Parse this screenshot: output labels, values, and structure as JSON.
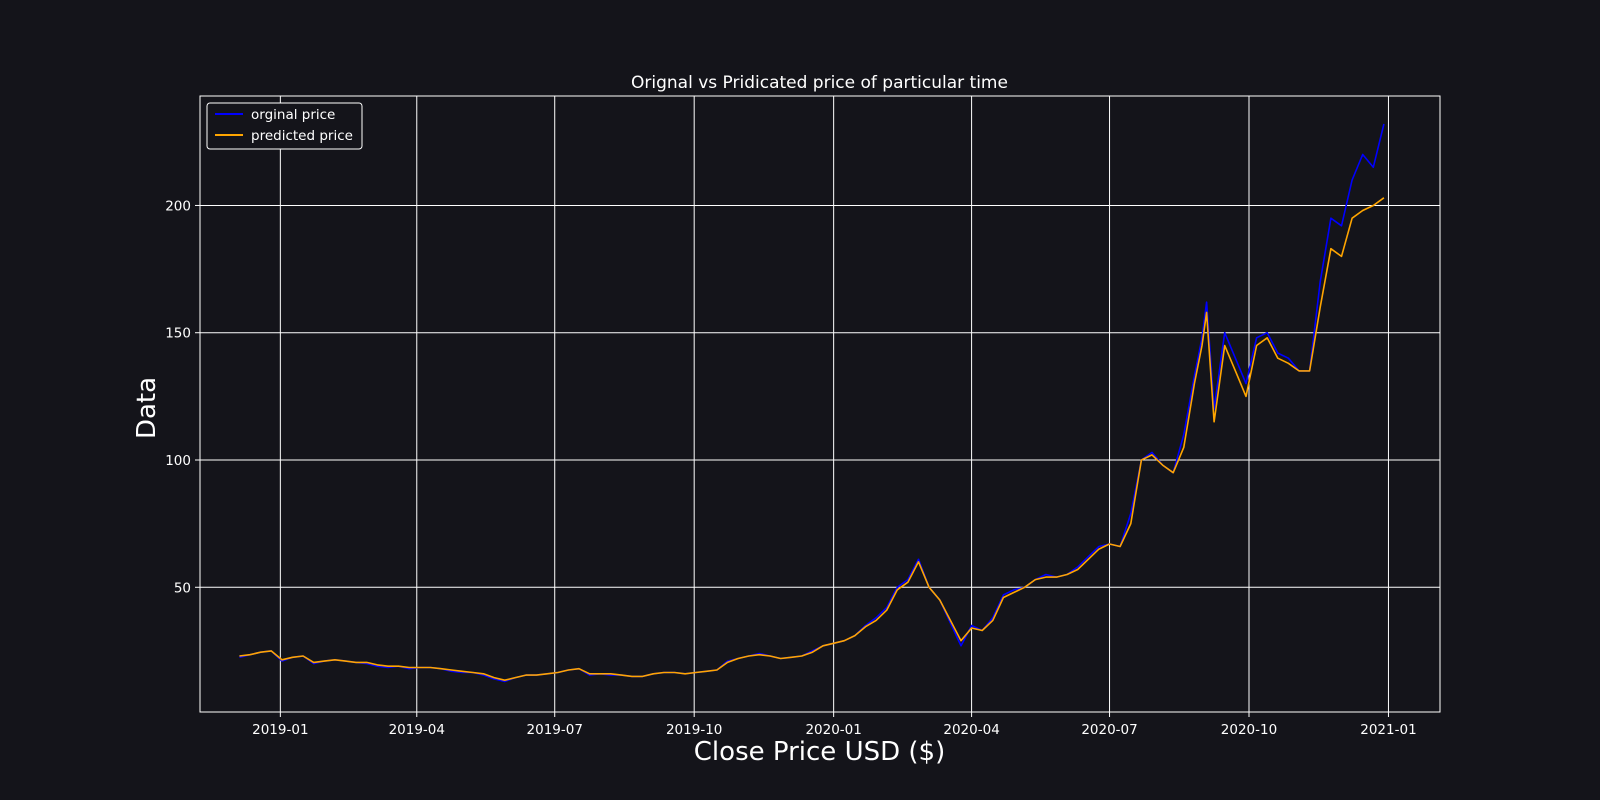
{
  "chart_data": {
    "type": "line",
    "title": "Orignal vs Pridicated price of particular time",
    "xlabel": "Close Price USD ($)",
    "ylabel": "Data",
    "grid": true,
    "legend_placement": "top-left",
    "xlim": [
      "2018-11-09",
      "2021-02-04"
    ],
    "ylim": [
      1,
      243
    ],
    "x_ticks": [
      "2019-01",
      "2019-04",
      "2019-07",
      "2019-10",
      "2020-01",
      "2020-04",
      "2020-07",
      "2020-10",
      "2021-01"
    ],
    "x_tick_dates": [
      "2019-01-01",
      "2019-04-01",
      "2019-07-01",
      "2019-10-01",
      "2020-01-01",
      "2020-04-01",
      "2020-07-01",
      "2020-10-01",
      "2021-01-01"
    ],
    "y_ticks": [
      50,
      100,
      150,
      200
    ],
    "colors": {
      "background": "#14141a",
      "grid": "#ffffff",
      "text": "#ffffff",
      "original": "#0000ff",
      "predicted": "#ffa500"
    },
    "x": [
      "2018-12-05",
      "2018-12-12",
      "2018-12-19",
      "2018-12-26",
      "2019-01-02",
      "2019-01-09",
      "2019-01-16",
      "2019-01-23",
      "2019-01-30",
      "2019-02-06",
      "2019-02-13",
      "2019-02-20",
      "2019-02-27",
      "2019-03-06",
      "2019-03-13",
      "2019-03-20",
      "2019-03-27",
      "2019-04-03",
      "2019-04-10",
      "2019-04-17",
      "2019-04-24",
      "2019-05-01",
      "2019-05-08",
      "2019-05-15",
      "2019-05-22",
      "2019-05-29",
      "2019-06-05",
      "2019-06-12",
      "2019-06-19",
      "2019-06-26",
      "2019-07-03",
      "2019-07-10",
      "2019-07-17",
      "2019-07-24",
      "2019-07-31",
      "2019-08-07",
      "2019-08-14",
      "2019-08-21",
      "2019-08-28",
      "2019-09-04",
      "2019-09-11",
      "2019-09-18",
      "2019-09-25",
      "2019-10-02",
      "2019-10-09",
      "2019-10-16",
      "2019-10-23",
      "2019-10-30",
      "2019-11-06",
      "2019-11-13",
      "2019-11-20",
      "2019-11-27",
      "2019-12-04",
      "2019-12-11",
      "2019-12-18",
      "2019-12-25",
      "2020-01-01",
      "2020-01-08",
      "2020-01-15",
      "2020-01-22",
      "2020-01-29",
      "2020-02-05",
      "2020-02-12",
      "2020-02-19",
      "2020-02-26",
      "2020-03-04",
      "2020-03-11",
      "2020-03-18",
      "2020-03-25",
      "2020-04-01",
      "2020-04-08",
      "2020-04-15",
      "2020-04-22",
      "2020-04-29",
      "2020-05-06",
      "2020-05-13",
      "2020-05-20",
      "2020-05-27",
      "2020-06-03",
      "2020-06-10",
      "2020-06-17",
      "2020-06-24",
      "2020-07-01",
      "2020-07-08",
      "2020-07-15",
      "2020-07-22",
      "2020-07-29",
      "2020-08-05",
      "2020-08-12",
      "2020-08-19",
      "2020-08-26",
      "2020-08-31",
      "2020-09-03",
      "2020-09-08",
      "2020-09-15",
      "2020-09-22",
      "2020-09-29",
      "2020-10-06",
      "2020-10-13",
      "2020-10-20",
      "2020-10-27",
      "2020-11-03",
      "2020-11-10",
      "2020-11-17",
      "2020-11-24",
      "2020-12-01",
      "2020-12-08",
      "2020-12-15",
      "2020-12-22",
      "2020-12-29"
    ],
    "series": [
      {
        "name": "orginal price",
        "color": "#0000ff",
        "values": [
          22.5,
          23.5,
          24.5,
          25,
          21,
          22.5,
          23,
          20,
          21,
          21.5,
          21,
          20.5,
          20,
          19,
          18.5,
          19,
          18,
          18.5,
          18.5,
          18,
          17,
          16.5,
          16.5,
          15.5,
          14,
          13,
          14.5,
          15.5,
          15.5,
          16,
          16.5,
          17.5,
          18,
          15.5,
          16,
          15.5,
          15.5,
          15,
          15,
          16,
          16.5,
          16.5,
          16,
          16.5,
          17,
          17.5,
          21,
          22,
          23,
          24,
          23,
          22,
          22.5,
          23,
          25,
          27,
          28,
          29,
          31,
          35,
          38,
          42,
          50,
          53,
          61,
          50,
          45,
          36,
          27,
          35,
          33,
          38,
          47,
          49,
          50,
          53,
          55,
          54,
          55,
          58,
          62,
          66,
          67,
          66,
          79,
          100,
          103,
          98,
          95,
          110,
          133,
          148,
          162,
          120,
          150,
          140,
          130,
          148,
          150,
          142,
          140,
          135,
          135,
          170,
          195,
          192,
          210,
          220,
          215,
          232
        ]
      },
      {
        "name": "predicted price",
        "color": "#ffa500",
        "values": [
          23,
          23.5,
          24.5,
          25,
          21.5,
          22.5,
          23,
          20.5,
          21,
          21.5,
          21,
          20.5,
          20.5,
          19.5,
          19,
          19,
          18.5,
          18.5,
          18.5,
          18,
          17.5,
          17,
          16.5,
          16,
          14.5,
          13.5,
          14.5,
          15.5,
          15.5,
          16,
          16.5,
          17.5,
          18,
          16,
          16,
          16,
          15.5,
          15,
          15,
          16,
          16.5,
          16.5,
          16,
          16.5,
          17,
          17.5,
          20.5,
          22,
          23,
          23.5,
          23,
          22,
          22.5,
          23,
          24.5,
          27,
          28,
          29,
          31,
          34.5,
          37,
          41,
          49,
          52,
          60,
          50,
          45,
          37,
          29,
          34,
          33,
          37,
          46,
          48,
          50,
          53,
          54,
          54,
          55,
          57,
          61,
          65,
          67,
          66,
          75,
          100,
          102,
          98,
          95,
          105,
          130,
          145,
          158,
          115,
          145,
          135,
          125,
          145,
          148,
          140,
          138,
          135,
          135,
          160,
          183,
          180,
          195,
          198,
          200,
          203
        ]
      }
    ]
  }
}
